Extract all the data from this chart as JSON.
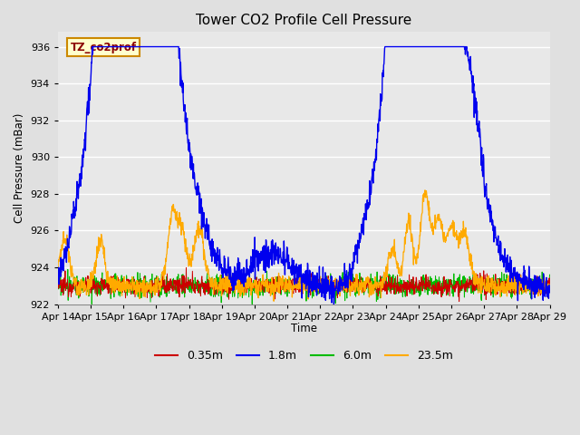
{
  "title": "Tower CO2 Profile Cell Pressure",
  "ylabel": "Cell Pressure (mBar)",
  "xlabel": "Time",
  "tag_label": "TZ_co2prof",
  "ylim": [
    922,
    936.8
  ],
  "yticks": [
    922,
    924,
    926,
    928,
    930,
    932,
    934,
    936
  ],
  "series_colors": {
    "0.35m": "#cc0000",
    "1.8m": "#0000ee",
    "6.0m": "#00bb00",
    "23.5m": "#ffaa00"
  },
  "bg_color": "#e0e0e0",
  "plot_bg_color": "#e8e8e8",
  "base_pressure": 923.0,
  "xtick_labels": [
    "Apr 14",
    "Apr 15",
    "Apr 16",
    "Apr 17",
    "Apr 18",
    "Apr 19",
    "Apr 20",
    "Apr 21",
    "Apr 22",
    "Apr 23",
    "Apr 24",
    "Apr 25",
    "Apr 26",
    "Apr 27",
    "Apr 28",
    "Apr 29"
  ]
}
